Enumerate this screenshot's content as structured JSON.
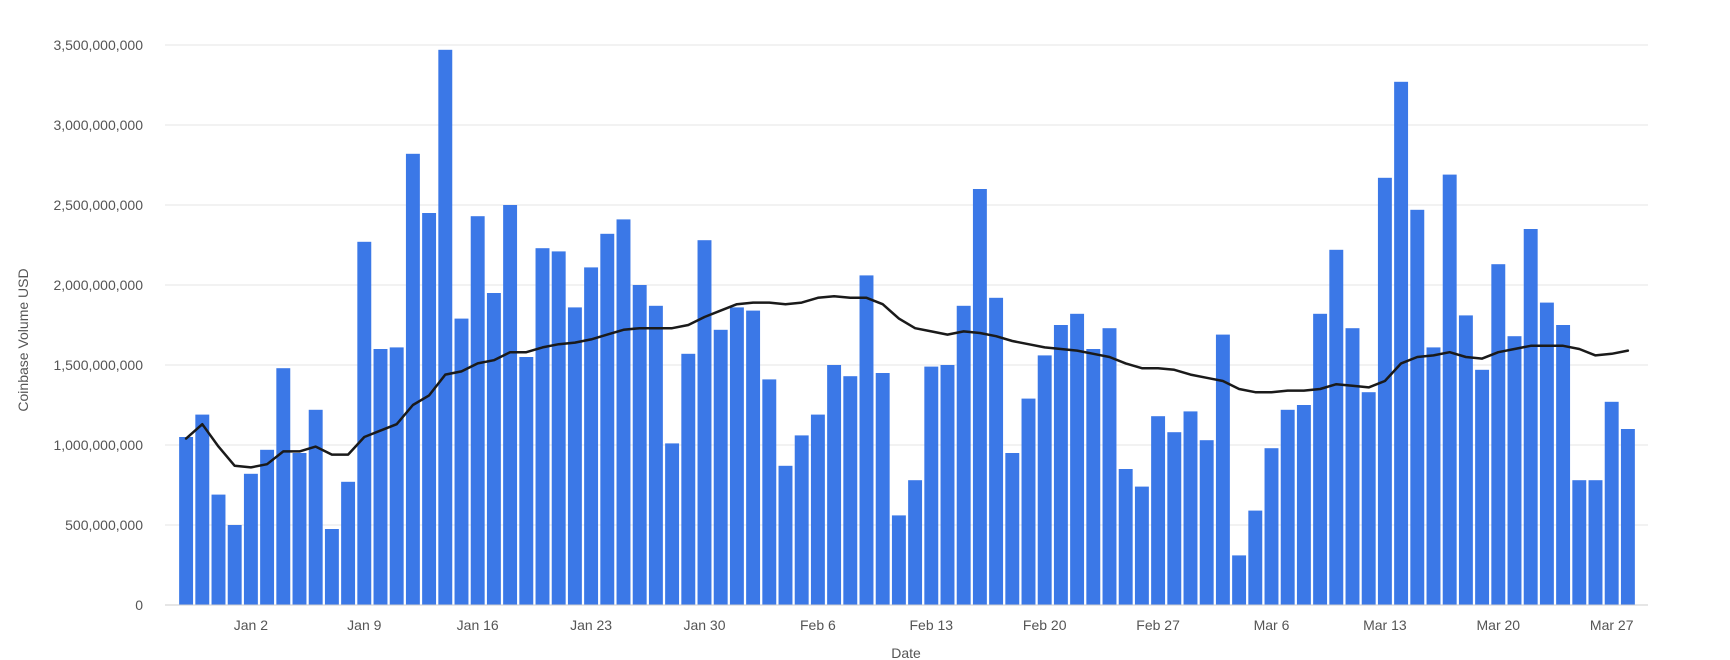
{
  "chart_data": {
    "type": "bar",
    "xlabel": "Date",
    "ylabel": "Coinbase Volume USD",
    "ylim": [
      0,
      3500000000
    ],
    "grid": true,
    "y_ticks": [
      {
        "value": 0,
        "label": "0"
      },
      {
        "value": 500000000,
        "label": "500,000,000"
      },
      {
        "value": 1000000000,
        "label": "1,000,000,000"
      },
      {
        "value": 1500000000,
        "label": "1,500,000,000"
      },
      {
        "value": 2000000000,
        "label": "2,000,000,000"
      },
      {
        "value": 2500000000,
        "label": "2,500,000,000"
      },
      {
        "value": 3000000000,
        "label": "3,000,000,000"
      },
      {
        "value": 3500000000,
        "label": "3,500,000,000"
      }
    ],
    "x_ticks": [
      {
        "index": 4,
        "label": "Jan 2"
      },
      {
        "index": 11,
        "label": "Jan 9"
      },
      {
        "index": 18,
        "label": "Jan 16"
      },
      {
        "index": 25,
        "label": "Jan 23"
      },
      {
        "index": 32,
        "label": "Jan 30"
      },
      {
        "index": 39,
        "label": "Feb 6"
      },
      {
        "index": 46,
        "label": "Feb 13"
      },
      {
        "index": 53,
        "label": "Feb 20"
      },
      {
        "index": 60,
        "label": "Feb 27"
      },
      {
        "index": 67,
        "label": "Mar 6"
      },
      {
        "index": 74,
        "label": "Mar 13"
      },
      {
        "index": 81,
        "label": "Mar 20"
      },
      {
        "index": 88,
        "label": "Mar 27"
      }
    ],
    "series": [
      {
        "type": "bar",
        "color": "#3b78e7",
        "values": [
          1050000000,
          1190000000,
          690000000,
          500000000,
          820000000,
          970000000,
          1480000000,
          950000000,
          1220000000,
          475000000,
          770000000,
          2270000000,
          1600000000,
          1610000000,
          2820000000,
          2450000000,
          3470000000,
          1790000000,
          2430000000,
          1950000000,
          2500000000,
          1550000000,
          2230000000,
          2210000000,
          1860000000,
          2110000000,
          2320000000,
          2410000000,
          2000000000,
          1870000000,
          1010000000,
          1570000000,
          2280000000,
          1720000000,
          1860000000,
          1840000000,
          1410000000,
          870000000,
          1060000000,
          1190000000,
          1500000000,
          1430000000,
          2060000000,
          1450000000,
          560000000,
          780000000,
          1490000000,
          1500000000,
          1870000000,
          2600000000,
          1920000000,
          950000000,
          1290000000,
          1560000000,
          1750000000,
          1820000000,
          1600000000,
          1730000000,
          850000000,
          740000000,
          1180000000,
          1080000000,
          1210000000,
          1030000000,
          1690000000,
          310000000,
          590000000,
          980000000,
          1220000000,
          1250000000,
          1820000000,
          2220000000,
          1730000000,
          1330000000,
          2670000000,
          3270000000,
          2470000000,
          1610000000,
          2690000000,
          1810000000,
          1470000000,
          2130000000,
          1680000000,
          2350000000,
          1890000000,
          1750000000,
          780000000,
          780000000,
          1270000000,
          1100000000
        ]
      },
      {
        "type": "line",
        "color": "#1a1a1a",
        "values": [
          1040000000,
          1130000000,
          990000000,
          870000000,
          860000000,
          880000000,
          960000000,
          960000000,
          990000000,
          940000000,
          940000000,
          1050000000,
          1090000000,
          1130000000,
          1250000000,
          1310000000,
          1440000000,
          1460000000,
          1510000000,
          1530000000,
          1580000000,
          1580000000,
          1610000000,
          1630000000,
          1640000000,
          1660000000,
          1690000000,
          1720000000,
          1730000000,
          1730000000,
          1730000000,
          1750000000,
          1800000000,
          1840000000,
          1880000000,
          1890000000,
          1890000000,
          1880000000,
          1890000000,
          1920000000,
          1930000000,
          1920000000,
          1920000000,
          1880000000,
          1790000000,
          1730000000,
          1710000000,
          1690000000,
          1710000000,
          1700000000,
          1680000000,
          1650000000,
          1630000000,
          1610000000,
          1600000000,
          1590000000,
          1570000000,
          1550000000,
          1510000000,
          1480000000,
          1480000000,
          1470000000,
          1440000000,
          1420000000,
          1400000000,
          1350000000,
          1330000000,
          1330000000,
          1340000000,
          1340000000,
          1350000000,
          1380000000,
          1370000000,
          1360000000,
          1400000000,
          1510000000,
          1550000000,
          1560000000,
          1580000000,
          1550000000,
          1540000000,
          1580000000,
          1600000000,
          1620000000,
          1620000000,
          1620000000,
          1600000000,
          1560000000,
          1570000000,
          1590000000
        ]
      }
    ]
  }
}
